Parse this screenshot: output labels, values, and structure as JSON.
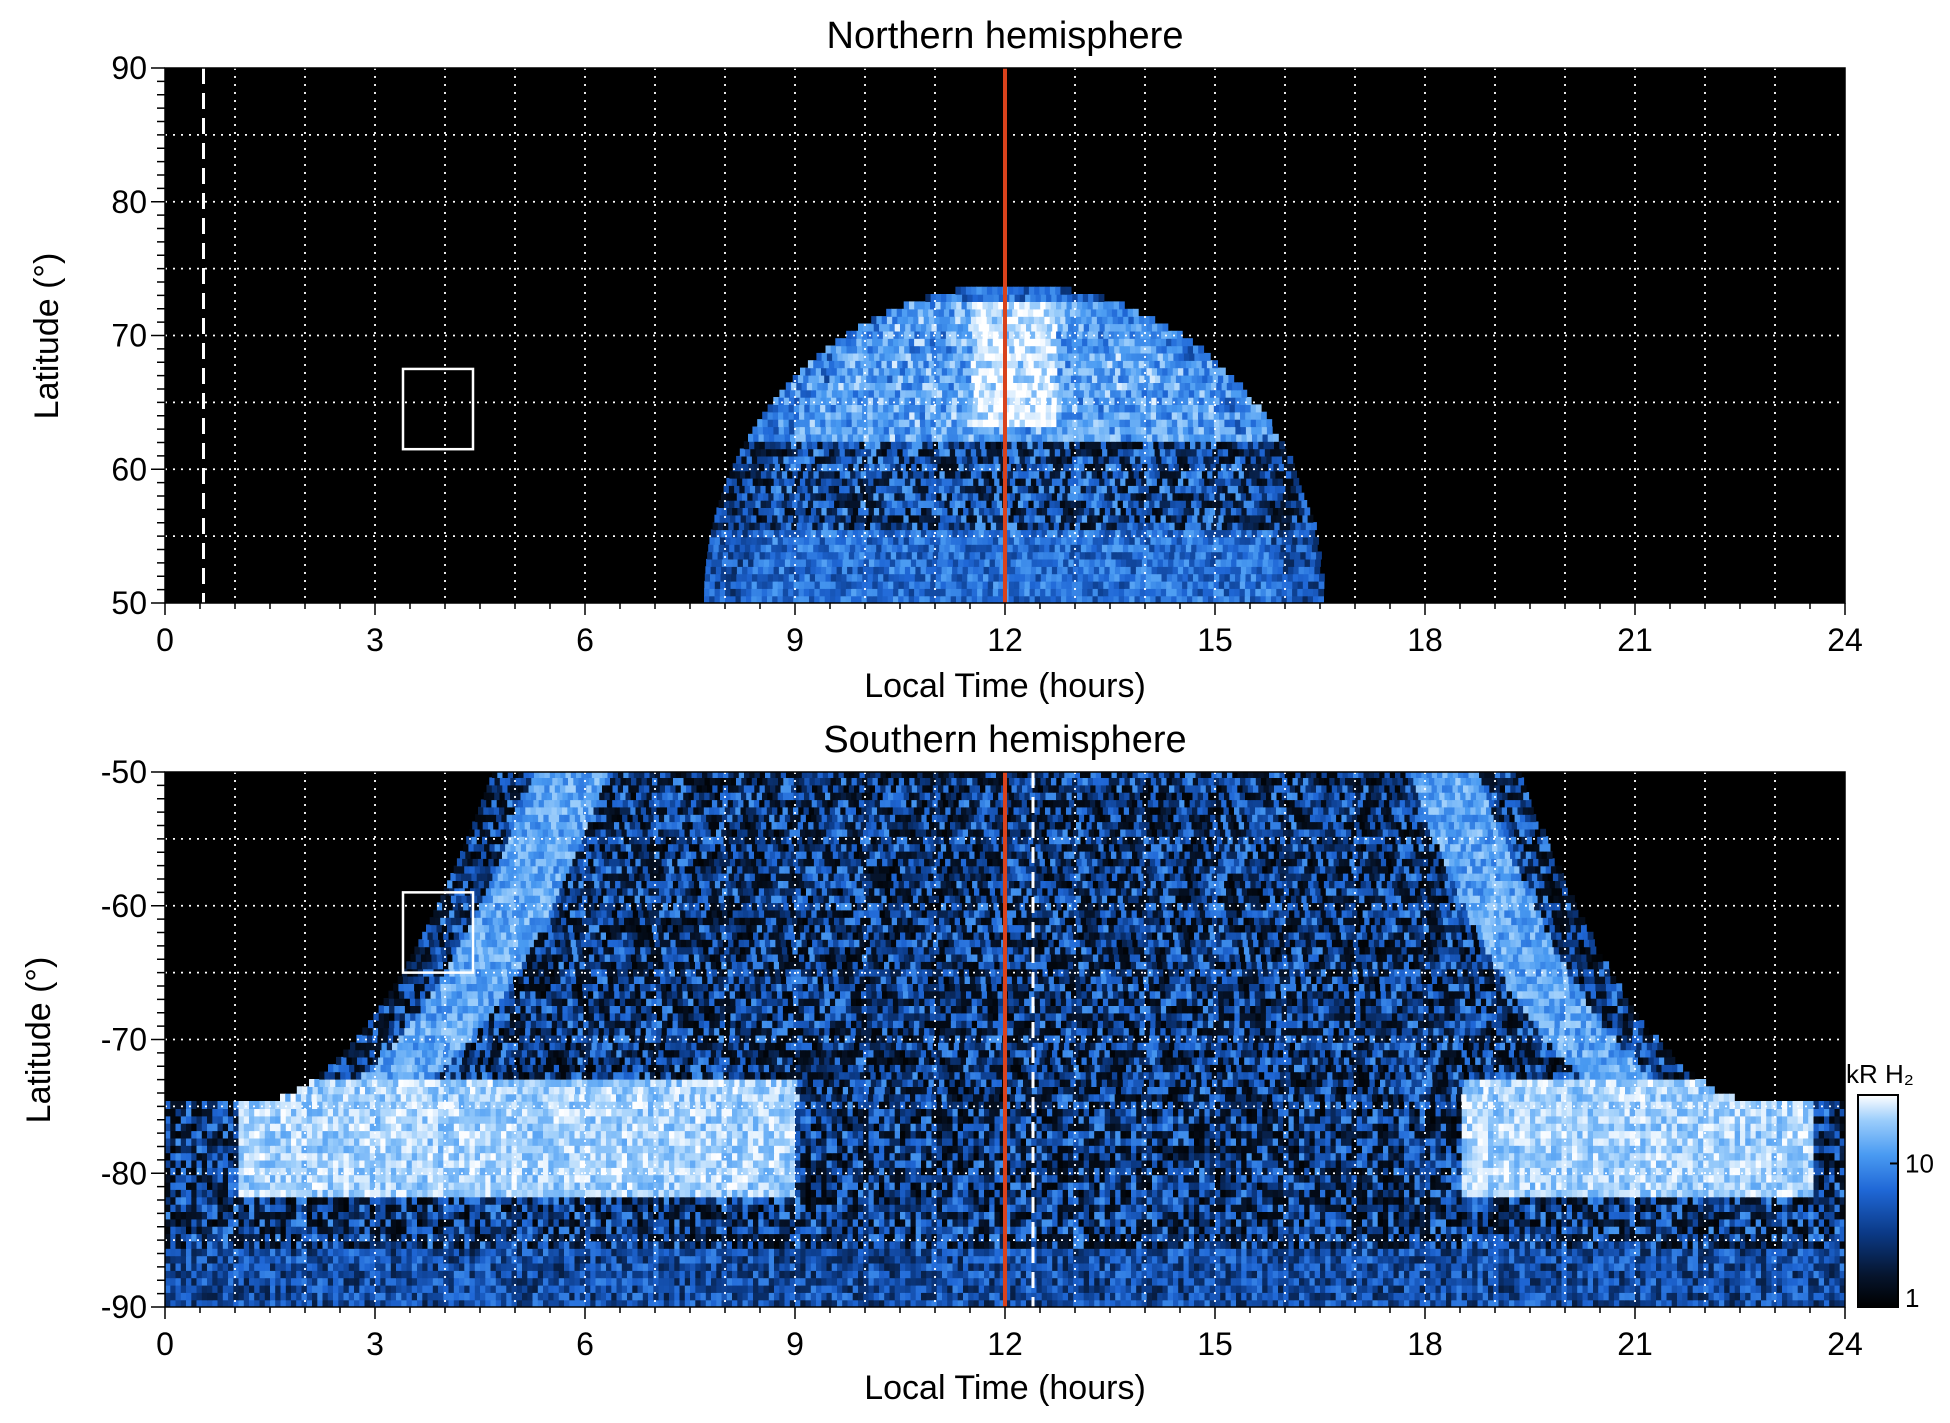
{
  "colors": {
    "background": "#000000",
    "grid": "#ffffff",
    "noon_line": "#d9421c",
    "box": "#ffffff",
    "colormap": [
      "#000000",
      "#06152e",
      "#0b3a87",
      "#1f67d6",
      "#4a9bf2",
      "#9bcdfb",
      "#ffffff"
    ]
  },
  "colorbar": {
    "label": "kR H₂",
    "scale": "log",
    "range": [
      1,
      30
    ],
    "ticks": [
      {
        "value": 10,
        "label": "10"
      },
      {
        "value": 1,
        "label": "1"
      }
    ]
  },
  "chart_data": [
    {
      "type": "heatmap",
      "title": "Northern hemisphere",
      "xlabel": "Local Time (hours)",
      "ylabel": "Latitude (°)",
      "xlim": [
        0,
        24
      ],
      "ylim": [
        50,
        90
      ],
      "xticks": [
        0,
        3,
        6,
        9,
        12,
        15,
        18,
        21,
        24
      ],
      "yticks": [
        50,
        60,
        70,
        80,
        90
      ],
      "grid": true,
      "vertical_lines": [
        {
          "x": 12,
          "style": "solid",
          "color": "#d9421c"
        },
        {
          "x": 0.55,
          "style": "dashed",
          "color": "#ffffff"
        }
      ],
      "box": {
        "x": [
          3.4,
          4.4
        ],
        "y": [
          61.5,
          67.5
        ]
      },
      "emission_region": {
        "description_hidden": true,
        "center_lt": 12.1,
        "half_width_lt_at_50": 4.4,
        "max_latitude": 73.5,
        "peak_band_latitude": [
          62,
          72
        ],
        "brightness_kR": [
          1,
          30
        ]
      }
    },
    {
      "type": "heatmap",
      "title": "Southern hemisphere",
      "xlabel": "Local Time (hours)",
      "ylabel": "Latitude (°)",
      "xlim": [
        0,
        24
      ],
      "ylim": [
        -90,
        -50
      ],
      "xticks": [
        0,
        3,
        6,
        9,
        12,
        15,
        18,
        21,
        24
      ],
      "yticks": [
        -50,
        -60,
        -70,
        -80,
        -90
      ],
      "grid": true,
      "vertical_lines": [
        {
          "x": 12,
          "style": "solid",
          "color": "#d9421c"
        },
        {
          "x": 12.4,
          "style": "dashed",
          "color": "#ffffff"
        }
      ],
      "box": {
        "x": [
          3.4,
          4.4
        ],
        "y": [
          -65,
          -59
        ]
      },
      "emission_region": {
        "edge_latitude": -75,
        "bright_band_latitude": [
          -82,
          -73
        ],
        "bright_band_lt": [
          [
            1,
            9
          ],
          [
            18.5,
            23.5
          ]
        ],
        "brightness_kR": [
          1,
          30
        ]
      }
    }
  ]
}
